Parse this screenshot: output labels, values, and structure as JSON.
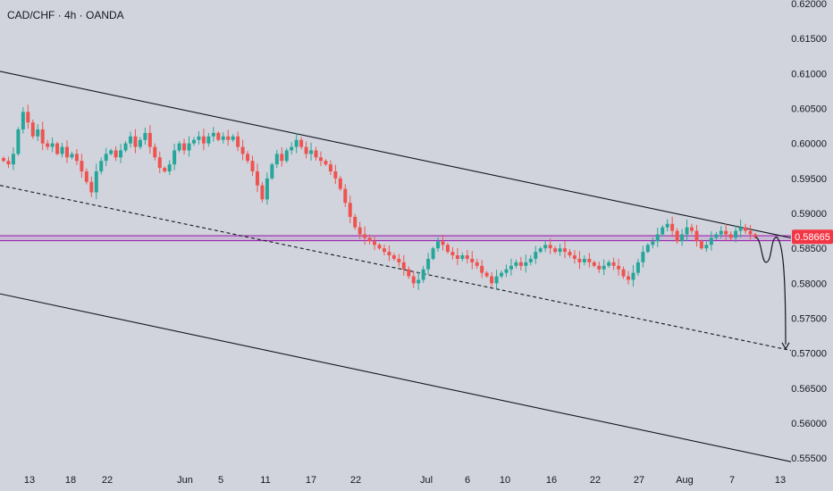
{
  "header": {
    "title": "CAD/CHF · 4h · OANDA"
  },
  "price_axis": {
    "ticks": [
      "0.62000",
      "0.61500",
      "0.61000",
      "0.60500",
      "0.60000",
      "0.59500",
      "0.59000",
      "0.58500",
      "0.58000",
      "0.57500",
      "0.57000",
      "0.56500",
      "0.56000",
      "0.55500"
    ],
    "current_price_label": "0.58665"
  },
  "time_axis": {
    "ticks": [
      "13",
      "18",
      "22",
      "Jun",
      "5",
      "11",
      "17",
      "22",
      "Jul",
      "6",
      "10",
      "16",
      "22",
      "27",
      "Aug",
      "7",
      "13"
    ]
  },
  "colors": {
    "background": "#d1d4dc",
    "up_candle": "#26a69a",
    "down_candle": "#ef5350",
    "support_zone": "#9c27b0",
    "price_label_bg": "#f23645",
    "trendline": "#131722",
    "axis_text": "#131722"
  },
  "chart_data": {
    "type": "candlestick",
    "symbol": "CAD/CHF",
    "timeframe": "4h",
    "source": "OANDA",
    "ylim": [
      0.5535,
      0.6205
    ],
    "price_ticks": [
      0.62,
      0.615,
      0.61,
      0.605,
      0.6,
      0.595,
      0.59,
      0.585,
      0.58,
      0.575,
      0.57,
      0.565,
      0.56,
      0.555
    ],
    "x_tick_labels": [
      "13",
      "18",
      "22",
      "Jun",
      "5",
      "11",
      "17",
      "22",
      "Jul",
      "6",
      "10",
      "16",
      "22",
      "27",
      "Aug",
      "7",
      "13"
    ],
    "current_price": 0.58665,
    "horizontal_zone": [
      0.5861,
      0.5868
    ],
    "path_closes": [
      [
        0.5975,
        0.597,
        0.5985,
        0.602,
        0.6045,
        0.603,
        0.601,
        0.602,
        0.6,
        0.5995,
        0.6,
        0.5985,
        0.5995,
        0.598,
        0.5985,
        0.5975,
        0.596,
        0.5945,
        0.593,
        0.596,
        0.5975,
        0.5985,
        0.599,
        0.598,
        0.599,
        0.6,
        0.601,
        0.5995,
        0.6005,
        0.6015,
        0.5995,
        0.598,
        0.5965,
        0.596,
        0.597,
        0.599,
        0.6,
        0.599,
        0.6,
        0.6005,
        0.601,
        0.6,
        0.601,
        0.6015,
        0.6005,
        0.601,
        0.6005,
        0.601,
        0.5995,
        0.5985,
        0.5975,
        0.596,
        0.594,
        0.592,
        0.595,
        0.597,
        0.5985,
        0.5975,
        0.599,
        0.5995,
        0.6005,
        0.5995,
        0.5985,
        0.599,
        0.598,
        0.5975,
        0.597,
        0.596,
        0.595,
        0.5935,
        0.5915,
        0.5895,
        0.588,
        0.587,
        0.5865,
        0.586,
        0.5855,
        0.585,
        0.5845,
        0.584,
        0.5835,
        0.583,
        0.582,
        0.581,
        0.58,
        0.5805,
        0.582,
        0.5835,
        0.585,
        0.586,
        0.5855,
        0.5845,
        0.584,
        0.5835,
        0.584,
        0.5835,
        0.583,
        0.5825,
        0.5815,
        0.581,
        0.58,
        0.581,
        0.5815,
        0.582,
        0.5825,
        0.583,
        0.5825,
        0.583,
        0.5835,
        0.5845,
        0.585,
        0.5855,
        0.585,
        0.5845,
        0.585,
        0.5845,
        0.584,
        0.5835,
        0.583,
        0.5835,
        0.583,
        0.5825,
        0.582,
        0.5825,
        0.583,
        0.5825,
        0.582,
        0.581,
        0.5805,
        0.5815,
        0.583,
        0.5845,
        0.5855,
        0.586,
        0.587,
        0.588,
        0.5885,
        0.5875,
        0.586,
        0.587,
        0.588,
        0.5875,
        0.586,
        0.585,
        0.5855,
        0.5865,
        0.587,
        0.5875,
        0.587,
        0.5865,
        0.5875,
        0.588,
        0.5875,
        0.587,
        0.5866
      ]
    ],
    "trendlines": [
      {
        "style": "solid",
        "points": [
          [
            "May 8",
            0.6103
          ],
          [
            "Aug 13",
            0.5865
          ]
        ]
      },
      {
        "style": "dashed",
        "points": [
          [
            "May 8",
            0.594
          ],
          [
            "Aug 13",
            0.5704
          ]
        ]
      },
      {
        "style": "solid",
        "points": [
          [
            "May 8",
            0.5785
          ],
          [
            "Aug 13",
            0.5545
          ]
        ]
      }
    ],
    "projection": {
      "style": "arrow",
      "from": 0.5866,
      "dip": 0.583,
      "retest": 0.5866,
      "target": 0.5705
    }
  }
}
